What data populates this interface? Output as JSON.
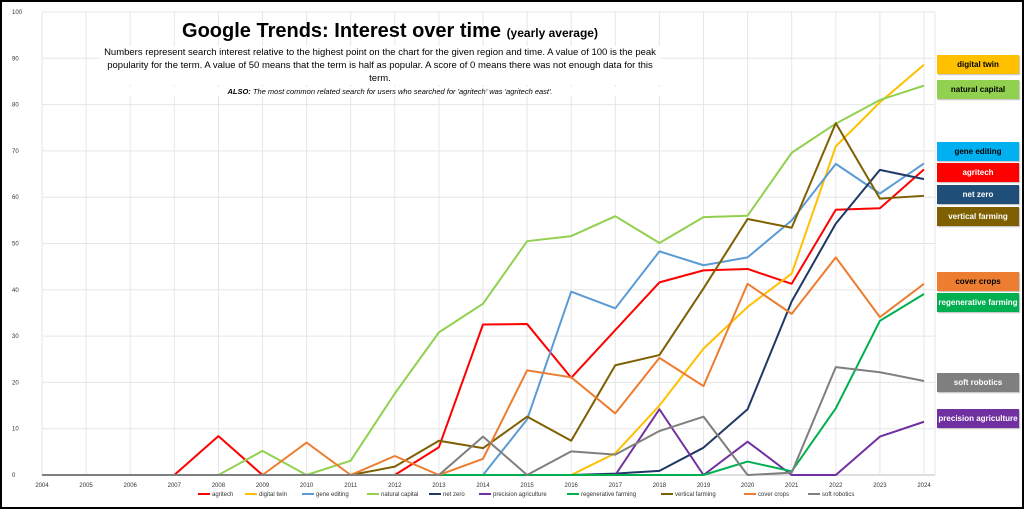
{
  "chart_data": {
    "type": "line",
    "title": "Google Trends: Interest over time",
    "title_suffix": "(yearly average)",
    "subtitle": "Numbers represent search interest relative to the highest point on the chart for the given region and time. A value of 100 is the peak popularity for the term. A value of 50 means that the term is half as popular. A score of 0 means there was not enough data for this term.",
    "note_prefix": "ALSO:",
    "note": "The most common related search for users who searched for 'agritech' was 'agritech east'.",
    "x": [
      2004,
      2005,
      2006,
      2007,
      2008,
      2009,
      2010,
      2011,
      2012,
      2013,
      2014,
      2015,
      2016,
      2017,
      2018,
      2019,
      2020,
      2021,
      2022,
      2023,
      2024
    ],
    "ylim": [
      0,
      100
    ],
    "yticks": [
      0,
      10,
      20,
      30,
      40,
      50,
      60,
      70,
      80,
      90,
      100
    ],
    "grid": true,
    "legend": "bottom",
    "series": [
      {
        "name": "agritech",
        "color": "#FF0000",
        "values": [
          0,
          0,
          0,
          0,
          8.4,
          0,
          0,
          0,
          0,
          6,
          32.5,
          32.6,
          21,
          31.3,
          41.6,
          44.2,
          44.5,
          41.3,
          57.3,
          57.6,
          66
        ]
      },
      {
        "name": "digital twin",
        "color": "#FFC000",
        "values": [
          0,
          0,
          0,
          0,
          0,
          0,
          0,
          0,
          0,
          0,
          0,
          0,
          0,
          4.7,
          15,
          27.3,
          36.3,
          43.5,
          71,
          80.5,
          88.6
        ]
      },
      {
        "name": "gene editing",
        "color": "#5B9BD5",
        "values": [
          0,
          0,
          0,
          0,
          0,
          0,
          0,
          0,
          0,
          0,
          0,
          12,
          39.6,
          36,
          48.3,
          45.3,
          47,
          55,
          67.2,
          60.8,
          67.3
        ]
      },
      {
        "name": "natural capital",
        "color": "#92D050",
        "values": [
          0,
          0,
          0,
          0,
          0,
          5.2,
          0,
          3.1,
          17.6,
          30.8,
          37,
          50.5,
          51.6,
          55.9,
          50.1,
          55.7,
          56,
          69.6,
          75.9,
          81,
          84.1
        ]
      },
      {
        "name": "net zero",
        "color": "#1F3864",
        "values": [
          0,
          0,
          0,
          0,
          0,
          0,
          0,
          0,
          0,
          0,
          0,
          0,
          0,
          0.3,
          0.9,
          5.9,
          14.2,
          37.5,
          54.3,
          65.9,
          63.9
        ]
      },
      {
        "name": "precision agriculture",
        "color": "#7030A0",
        "values": [
          0,
          0,
          0,
          0,
          0,
          0,
          0,
          0,
          0,
          0,
          0,
          0,
          0,
          0,
          14.2,
          0,
          7.2,
          0,
          0,
          8.3,
          11.5
        ]
      },
      {
        "name": "regenerative farming",
        "color": "#00B050",
        "values": [
          0,
          0,
          0,
          0,
          0,
          0,
          0,
          0,
          0,
          0,
          0,
          0,
          0,
          0,
          0,
          0,
          2.9,
          0.8,
          14.4,
          33.3,
          39.1
        ]
      },
      {
        "name": "vertical farming",
        "color": "#7F6000",
        "values": [
          0,
          0,
          0,
          0,
          0,
          0,
          0,
          0,
          1.8,
          7.4,
          5.8,
          12.6,
          7.4,
          23.7,
          25.9,
          40.3,
          55.3,
          53.4,
          76,
          59.7,
          60.3
        ]
      },
      {
        "name": "cover crops",
        "color": "#ED7D31",
        "values": [
          0,
          0,
          0,
          0,
          0,
          0,
          7,
          0,
          4.1,
          0,
          3.5,
          22.6,
          21.1,
          13.3,
          25.3,
          19.2,
          41.3,
          34.8,
          47,
          34.1,
          41.3
        ]
      },
      {
        "name": "soft robotics",
        "color": "#7F7F7F",
        "values": [
          0,
          0,
          0,
          0,
          0,
          0,
          0,
          0,
          0,
          0,
          8.3,
          0,
          5.1,
          4.4,
          9.5,
          12.6,
          0,
          0.5,
          23.3,
          22.2,
          20.3
        ]
      }
    ],
    "end_labels": [
      {
        "name": "digital twin",
        "bg": "#FFC000",
        "fg": "#000000"
      },
      {
        "name": "natural capital",
        "bg": "#92D050",
        "fg": "#000000"
      },
      {
        "name": "gene editing",
        "bg": "#00B0F0",
        "fg": "#000000"
      },
      {
        "name": "agritech",
        "bg": "#FF0000",
        "fg": "#FFFFFF"
      },
      {
        "name": "net zero",
        "bg": "#1F4E79",
        "fg": "#FFFFFF"
      },
      {
        "name": "vertical farming",
        "bg": "#7F6000",
        "fg": "#FFFFFF"
      },
      {
        "name": "cover crops",
        "bg": "#ED7D31",
        "fg": "#000000"
      },
      {
        "name": "regenerative farming",
        "bg": "#00B050",
        "fg": "#FFFFFF"
      },
      {
        "name": "soft robotics",
        "bg": "#7F7F7F",
        "fg": "#FFFFFF"
      },
      {
        "name": "precision agriculture",
        "bg": "#7030A0",
        "fg": "#FFFFFF"
      }
    ]
  }
}
